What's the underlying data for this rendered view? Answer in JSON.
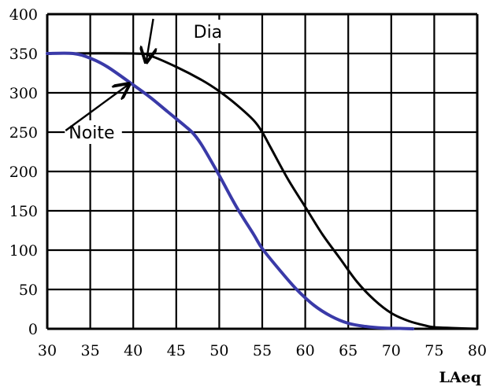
{
  "chart_data": {
    "type": "line",
    "title": "",
    "xlabel": "LAeq",
    "ylabel": "",
    "xlim": [
      30,
      80
    ],
    "ylim": [
      0,
      400
    ],
    "xticks": [
      30,
      35,
      40,
      45,
      50,
      55,
      60,
      65,
      70,
      75,
      80
    ],
    "yticks": [
      0,
      50,
      100,
      150,
      200,
      250,
      300,
      350,
      400
    ],
    "grid": true,
    "series": [
      {
        "name": "Dia",
        "color": "#000000",
        "x": [
          30,
          40,
          42,
          45,
          48,
          50,
          52,
          54,
          55,
          56,
          58,
          60,
          62,
          64,
          66,
          68,
          70,
          72,
          74,
          75,
          77,
          80
        ],
        "y": [
          350,
          350,
          347,
          333,
          316,
          302,
          285,
          265,
          250,
          230,
          190,
          155,
          120,
          90,
          60,
          37,
          20,
          10,
          4,
          2,
          1,
          0
        ]
      },
      {
        "name": "Noite",
        "color": "#3a3aa8",
        "x": [
          30,
          33,
          35,
          37,
          40,
          42,
          44,
          46,
          47,
          48,
          50,
          52,
          54,
          55,
          57,
          59,
          61,
          63,
          65,
          67,
          69,
          71,
          72.5
        ],
        "y": [
          350,
          350,
          344,
          333,
          310,
          294,
          276,
          258,
          248,
          233,
          195,
          155,
          120,
          102,
          75,
          50,
          30,
          16,
          7,
          3,
          1,
          0.5,
          0
        ]
      }
    ],
    "annotations": [
      {
        "text": "Dia",
        "series": "Dia",
        "arrow_to": [
          41.5,
          339
        ],
        "label_at": [
          47,
          378
        ]
      },
      {
        "text": "Noite",
        "series": "Noite",
        "arrow_to": [
          39.5,
          311
        ],
        "label_at": [
          32.5,
          250
        ]
      }
    ]
  }
}
